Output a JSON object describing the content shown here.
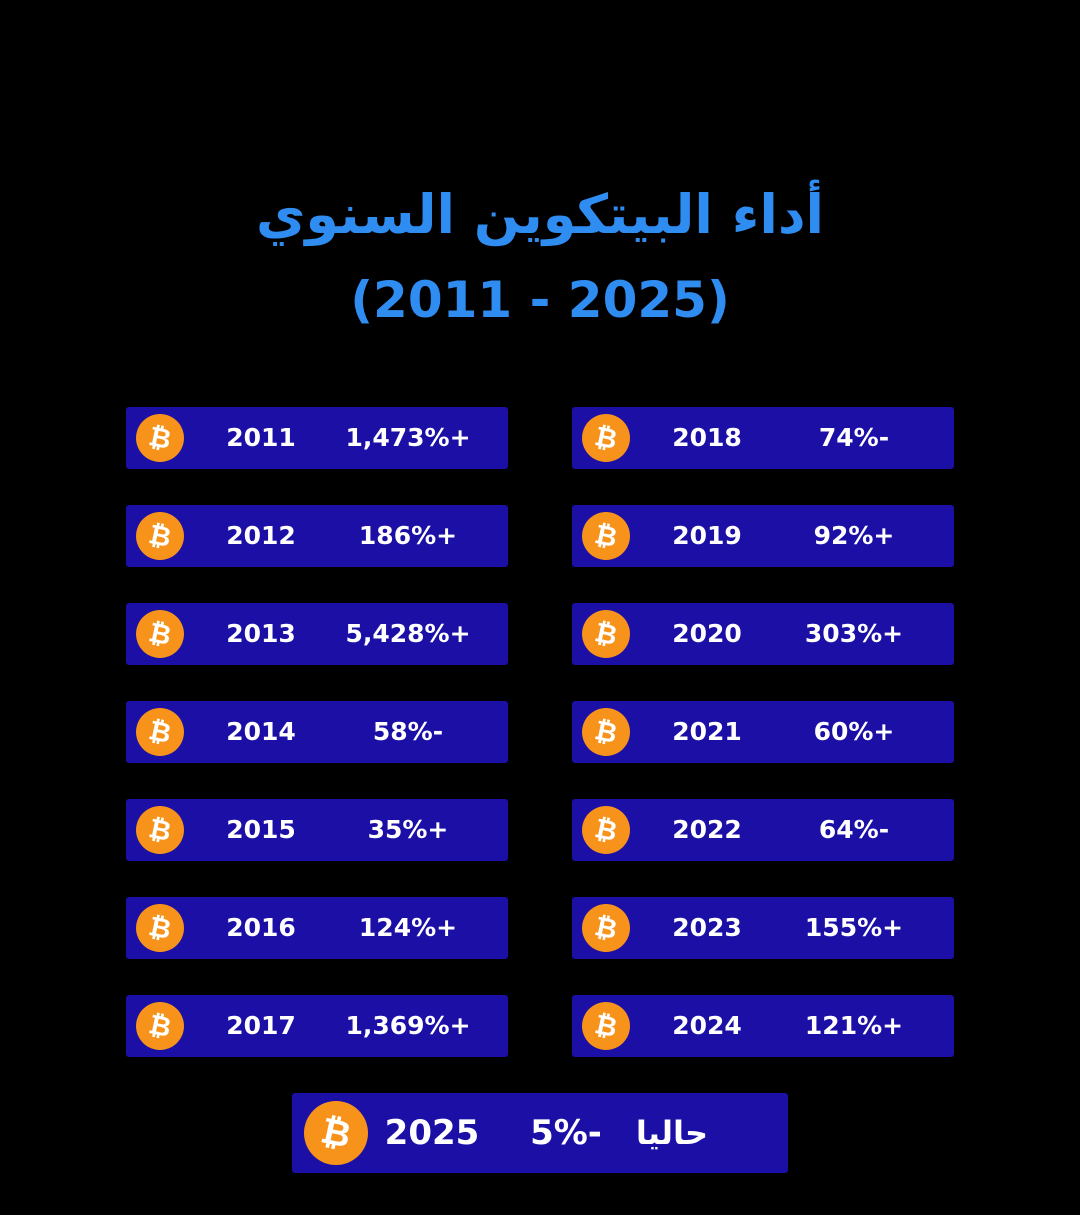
{
  "title": {
    "line1": "أداء البيتكوين السنوي",
    "line2": "(2011 - 2025)"
  },
  "colors": {
    "background": "#000000",
    "title": "#2f8cf0",
    "row": "#1b0fa6",
    "coin": "#f7931a",
    "text": "#ffffff"
  },
  "chart_data": {
    "type": "table",
    "title": "أداء البيتكوين السنوي (2011 - 2025)",
    "columns": [
      "year",
      "change"
    ],
    "rows": [
      {
        "year": "2011",
        "label": "1,473%+",
        "value": 1473
      },
      {
        "year": "2012",
        "label": "186%+",
        "value": 186
      },
      {
        "year": "2013",
        "label": "5,428%+",
        "value": 5428
      },
      {
        "year": "2014",
        "label": "58%-",
        "value": -58
      },
      {
        "year": "2015",
        "label": "35%+",
        "value": 35
      },
      {
        "year": "2016",
        "label": "124%+",
        "value": 124
      },
      {
        "year": "2017",
        "label": "1,369%+",
        "value": 1369
      },
      {
        "year": "2018",
        "label": "74%-",
        "value": -74
      },
      {
        "year": "2019",
        "label": "92%+",
        "value": 92
      },
      {
        "year": "2020",
        "label": "303%+",
        "value": 303
      },
      {
        "year": "2021",
        "label": "60%+",
        "value": 60
      },
      {
        "year": "2022",
        "label": "64%-",
        "value": -64
      },
      {
        "year": "2023",
        "label": "155%+",
        "value": 155
      },
      {
        "year": "2024",
        "label": "121%+",
        "value": 121
      }
    ],
    "current": {
      "year": "2025",
      "label": "5%-",
      "value": -5,
      "note": "حاليا"
    }
  }
}
